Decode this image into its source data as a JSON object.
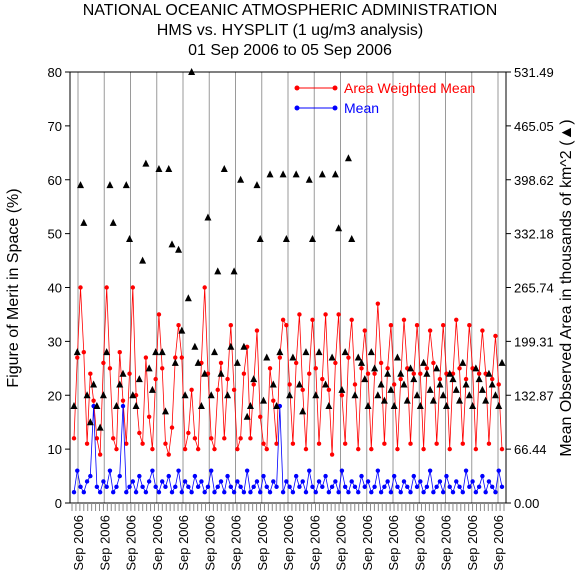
{
  "chart_data": {
    "type": "line",
    "title": [
      "NATIONAL OCEANIC ATMOSPHERIC ADMINISTRATION",
      "HMS vs. HYSPLIT (1 ug/m3 analysis)",
      "01 Sep 2006 to 05 Sep 2006"
    ],
    "ylabel": "Figure of Merit in Space (%)",
    "y2label": "Mean Observed Area in thousands of km^2 (▲)",
    "ylim": [
      0,
      80
    ],
    "y_ticks": [
      "0",
      "10",
      "20",
      "30",
      "40",
      "50",
      "60",
      "70",
      "80"
    ],
    "y2_ticks": [
      "0.00",
      "66.44",
      "132.87",
      "199.31",
      "265.74",
      "332.18",
      "398.62",
      "465.05",
      "531.49"
    ],
    "x_date_labels": [
      "Sep 2006",
      "Sep 2006",
      "Sep 2006",
      "Sep 2006",
      "Sep 2006",
      "Sep 2006",
      "Sep 2006",
      "Sep 2006",
      "Sep 2006",
      "Sep 2006",
      "Sep 2006",
      "Sep 2006",
      "Sep 2006",
      "Sep 2006",
      "Sep 2006",
      "Sep 2006",
      "Sep 2006"
    ],
    "legend_position": "top-right",
    "series": [
      {
        "name": "Area Weighted Mean",
        "color": "#ff0000",
        "marker": "circle",
        "values": [
          12,
          27,
          40,
          28,
          11,
          24,
          19,
          12,
          9,
          26,
          40,
          25,
          12,
          10,
          28,
          19,
          11,
          24,
          40,
          20,
          13,
          11,
          27,
          16,
          10,
          23,
          35,
          25,
          11,
          9,
          14,
          27,
          33,
          27,
          10,
          13,
          21,
          12,
          10,
          26,
          40,
          24,
          12,
          10,
          21,
          26,
          12,
          23,
          33,
          21,
          10,
          12,
          24,
          29,
          12,
          22,
          32,
          16,
          11,
          10,
          25,
          19,
          11,
          27,
          34,
          33,
          22,
          11,
          26,
          35,
          21,
          10,
          24,
          34,
          25,
          11,
          23,
          35,
          21,
          9,
          26,
          35,
          20,
          11,
          27,
          34,
          22,
          10,
          25,
          32,
          24,
          10,
          24,
          37,
          26,
          11,
          25,
          33,
          22,
          10,
          23,
          34,
          25,
          11,
          24,
          33,
          24,
          10,
          25,
          32,
          26,
          11,
          23,
          33,
          24,
          10,
          24,
          34,
          25,
          11,
          23,
          33,
          25,
          10,
          24,
          32,
          24,
          11,
          23,
          31,
          22,
          10
        ]
      },
      {
        "name": "Mean",
        "color": "#0000ff",
        "marker": "circle",
        "values": [
          2,
          6,
          3,
          2,
          4,
          5,
          18,
          3,
          2,
          4,
          3,
          6,
          2,
          3,
          5,
          18,
          2,
          3,
          4,
          2,
          5,
          3,
          2,
          4,
          6,
          3,
          2,
          4,
          3,
          5,
          2,
          3,
          6,
          2,
          4,
          3,
          2,
          5,
          3,
          4,
          2,
          3,
          6,
          2,
          3,
          4,
          2,
          5,
          3,
          2,
          4,
          3,
          2,
          6,
          2,
          3,
          4,
          2,
          5,
          3,
          2,
          4,
          3,
          18,
          2,
          4,
          3,
          2,
          5,
          3,
          4,
          2,
          6,
          3,
          2,
          4,
          3,
          5,
          2,
          3,
          4,
          2,
          6,
          3,
          2,
          4,
          3,
          2,
          5,
          3,
          4,
          2,
          3,
          6,
          2,
          3,
          4,
          2,
          5,
          3,
          2,
          4,
          3,
          2,
          5,
          3,
          4,
          2,
          3,
          6,
          2,
          3,
          4,
          2,
          5,
          3,
          2,
          4,
          3,
          2,
          6,
          3,
          4,
          2,
          3,
          5,
          2,
          4,
          3,
          2,
          6,
          3
        ]
      },
      {
        "name": "Mean Observed Area",
        "color": "#000000",
        "marker": "triangle",
        "axis": "right",
        "values": [
          18,
          28,
          59,
          52,
          20,
          15,
          22,
          18,
          14,
          20,
          28,
          59,
          52,
          18,
          22,
          24,
          59,
          49,
          20,
          18,
          23,
          45,
          63,
          25,
          21,
          28,
          62,
          28,
          17,
          62,
          48,
          26,
          47,
          32,
          20,
          38,
          80,
          29,
          26,
          18,
          24,
          53,
          20,
          28,
          43,
          24,
          62,
          20,
          29,
          43,
          26,
          60,
          29,
          16,
          18,
          23,
          59,
          49,
          19,
          27,
          61,
          22,
          18,
          28,
          61,
          49,
          20,
          27,
          61,
          22,
          17,
          28,
          60,
          49,
          20,
          28,
          61,
          22,
          18,
          27,
          61,
          51,
          21,
          28,
          64,
          49,
          20,
          27,
          26,
          23,
          18,
          28,
          25,
          20,
          22,
          19,
          24,
          21,
          18,
          27,
          24,
          22,
          19,
          25,
          23,
          20,
          18,
          26,
          24,
          21,
          19,
          25,
          22,
          20,
          18,
          24,
          23,
          21,
          19,
          26,
          22,
          20,
          18,
          25,
          23,
          21,
          19,
          24,
          22,
          20,
          18,
          26
        ]
      }
    ]
  }
}
